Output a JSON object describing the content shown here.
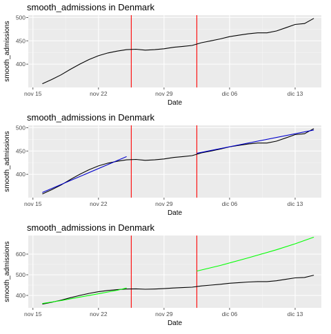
{
  "chart_data": [
    {
      "type": "line",
      "title": "smooth_admissions in Denmark",
      "xlabel": "Date",
      "ylabel": "smooth_admissions",
      "x_ticks": [
        "nov 15",
        "nov 22",
        "nov 29",
        "dic 06",
        "dic 13"
      ],
      "x_tick_values": [
        15,
        22,
        29,
        36,
        43
      ],
      "xlim": [
        14.5,
        45.8
      ],
      "y_ticks": [
        "400",
        "450",
        "500"
      ],
      "y_tick_values": [
        400,
        450,
        500
      ],
      "ylim": [
        350,
        505
      ],
      "grid": true,
      "vlines": [
        {
          "x": 25.5,
          "color": "#ff0000"
        },
        {
          "x": 32.5,
          "color": "#ff0000"
        }
      ],
      "series": [
        {
          "color": "#000000",
          "x": [
            16,
            17,
            18,
            19,
            20,
            21,
            22,
            23,
            24,
            25,
            26,
            27,
            28,
            29,
            30,
            31,
            32,
            33,
            34,
            35,
            36,
            37,
            38,
            39,
            40,
            41,
            42,
            43,
            44,
            45
          ],
          "y": [
            358,
            367,
            377,
            389,
            400,
            410,
            418,
            424,
            428,
            431,
            432,
            430,
            431,
            433,
            436,
            438,
            440,
            446,
            450,
            454,
            459,
            462,
            465,
            467,
            467,
            471,
            478,
            485,
            487,
            498
          ]
        }
      ]
    },
    {
      "type": "line",
      "title": "smooth_admissions in Denmark",
      "xlabel": "Date",
      "ylabel": "smooth_admissions",
      "x_ticks": [
        "nov 15",
        "nov 22",
        "nov 29",
        "dic 06",
        "dic 13"
      ],
      "x_tick_values": [
        15,
        22,
        29,
        36,
        43
      ],
      "xlim": [
        14.5,
        45.8
      ],
      "y_ticks": [
        "400",
        "450",
        "500"
      ],
      "y_tick_values": [
        400,
        450,
        500
      ],
      "ylim": [
        350,
        505
      ],
      "grid": true,
      "vlines": [
        {
          "x": 25.5,
          "color": "#ff0000"
        },
        {
          "x": 32.5,
          "color": "#ff0000"
        }
      ],
      "series": [
        {
          "color": "#000000",
          "x": [
            16,
            17,
            18,
            19,
            20,
            21,
            22,
            23,
            24,
            25,
            26,
            27,
            28,
            29,
            30,
            31,
            32,
            33,
            34,
            35,
            36,
            37,
            38,
            39,
            40,
            41,
            42,
            43,
            44,
            45
          ],
          "y": [
            358,
            367,
            377,
            389,
            400,
            410,
            418,
            424,
            428,
            431,
            432,
            430,
            431,
            433,
            436,
            438,
            440,
            446,
            450,
            454,
            459,
            462,
            465,
            467,
            467,
            471,
            478,
            485,
            487,
            498
          ]
        },
        {
          "color": "#0000cc",
          "x": [
            16,
            25
          ],
          "y": [
            361,
            438
          ]
        },
        {
          "color": "#0000cc",
          "x": [
            32.5,
            45
          ],
          "y": [
            445,
            495
          ]
        }
      ]
    },
    {
      "type": "line",
      "title": "smooth_admissions in Denmark",
      "xlabel": "Date",
      "ylabel": "smooth_admissions",
      "x_ticks": [
        "nov 15",
        "nov 22",
        "nov 29",
        "dic 06",
        "dic 13"
      ],
      "x_tick_values": [
        15,
        22,
        29,
        36,
        43
      ],
      "xlim": [
        14.5,
        45.8
      ],
      "y_ticks": [
        "400",
        "500",
        "600"
      ],
      "y_tick_values": [
        400,
        500,
        600
      ],
      "ylim": [
        340,
        690
      ],
      "grid": true,
      "vlines": [
        {
          "x": 25.5,
          "color": "#ff0000"
        },
        {
          "x": 32.5,
          "color": "#ff0000"
        }
      ],
      "series": [
        {
          "color": "#000000",
          "x": [
            16,
            17,
            18,
            19,
            20,
            21,
            22,
            23,
            24,
            25,
            26,
            27,
            28,
            29,
            30,
            31,
            32,
            33,
            34,
            35,
            36,
            37,
            38,
            39,
            40,
            41,
            42,
            43,
            44,
            45
          ],
          "y": [
            358,
            367,
            377,
            389,
            400,
            410,
            418,
            424,
            428,
            431,
            432,
            430,
            431,
            433,
            436,
            438,
            440,
            446,
            450,
            454,
            459,
            462,
            465,
            467,
            467,
            471,
            478,
            485,
            487,
            498
          ]
        },
        {
          "color": "#00ff00",
          "x": [
            16,
            18,
            20,
            22,
            24,
            25
          ],
          "y": [
            361,
            375,
            392,
            408,
            425,
            436
          ]
        },
        {
          "color": "#00ff00",
          "x": [
            32.5,
            35,
            38,
            41,
            43,
            45
          ],
          "y": [
            518,
            545,
            582,
            621,
            650,
            682
          ]
        }
      ]
    }
  ]
}
